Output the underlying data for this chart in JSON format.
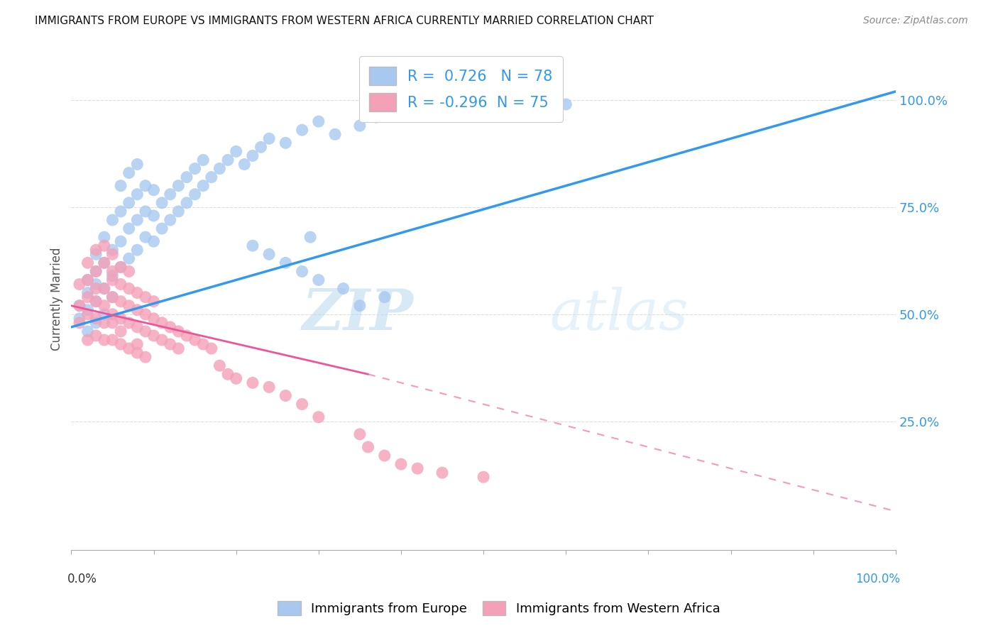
{
  "title": "IMMIGRANTS FROM EUROPE VS IMMIGRANTS FROM WESTERN AFRICA CURRENTLY MARRIED CORRELATION CHART",
  "source": "Source: ZipAtlas.com",
  "ylabel": "Currently Married",
  "ylabel_right_ticks": [
    "100.0%",
    "75.0%",
    "50.0%",
    "25.0%"
  ],
  "ylabel_right_vals": [
    1.0,
    0.75,
    0.5,
    0.25
  ],
  "blue_R": 0.726,
  "blue_N": 78,
  "pink_R": -0.296,
  "pink_N": 75,
  "blue_color": "#A8C8F0",
  "pink_color": "#F4A0B8",
  "blue_line_color": "#3399EE",
  "pink_line_color": "#EE5599",
  "legend_label_blue": "Immigrants from Europe",
  "legend_label_pink": "Immigrants from Western Africa",
  "watermark_zip": "ZIP",
  "watermark_atlas": "atlas",
  "xlim": [
    0.0,
    1.0
  ],
  "ylim": [
    -0.05,
    1.12
  ],
  "blue_scatter_x": [
    0.01,
    0.01,
    0.02,
    0.02,
    0.02,
    0.02,
    0.03,
    0.03,
    0.03,
    0.03,
    0.03,
    0.04,
    0.04,
    0.04,
    0.04,
    0.05,
    0.05,
    0.05,
    0.05,
    0.06,
    0.06,
    0.06,
    0.06,
    0.07,
    0.07,
    0.07,
    0.07,
    0.08,
    0.08,
    0.08,
    0.08,
    0.09,
    0.09,
    0.09,
    0.1,
    0.1,
    0.1,
    0.11,
    0.11,
    0.12,
    0.12,
    0.13,
    0.13,
    0.14,
    0.14,
    0.15,
    0.15,
    0.16,
    0.16,
    0.17,
    0.18,
    0.19,
    0.2,
    0.21,
    0.22,
    0.23,
    0.24,
    0.26,
    0.28,
    0.3,
    0.32,
    0.35,
    0.37,
    0.4,
    0.43,
    0.46,
    0.5,
    0.55,
    0.6,
    0.28,
    0.3,
    0.33,
    0.35,
    0.38,
    0.22,
    0.24,
    0.26,
    0.29
  ],
  "blue_scatter_y": [
    0.52,
    0.49,
    0.55,
    0.51,
    0.58,
    0.46,
    0.53,
    0.6,
    0.57,
    0.48,
    0.64,
    0.56,
    0.62,
    0.68,
    0.5,
    0.59,
    0.65,
    0.72,
    0.54,
    0.61,
    0.67,
    0.74,
    0.8,
    0.63,
    0.7,
    0.76,
    0.83,
    0.65,
    0.72,
    0.78,
    0.85,
    0.68,
    0.74,
    0.8,
    0.67,
    0.73,
    0.79,
    0.7,
    0.76,
    0.72,
    0.78,
    0.74,
    0.8,
    0.76,
    0.82,
    0.78,
    0.84,
    0.8,
    0.86,
    0.82,
    0.84,
    0.86,
    0.88,
    0.85,
    0.87,
    0.89,
    0.91,
    0.9,
    0.93,
    0.95,
    0.92,
    0.94,
    0.96,
    0.98,
    1.0,
    1.02,
    1.03,
    1.04,
    0.99,
    0.6,
    0.58,
    0.56,
    0.52,
    0.54,
    0.66,
    0.64,
    0.62,
    0.68
  ],
  "pink_scatter_x": [
    0.01,
    0.01,
    0.01,
    0.02,
    0.02,
    0.02,
    0.02,
    0.02,
    0.03,
    0.03,
    0.03,
    0.03,
    0.03,
    0.03,
    0.04,
    0.04,
    0.04,
    0.04,
    0.04,
    0.04,
    0.05,
    0.05,
    0.05,
    0.05,
    0.05,
    0.05,
    0.05,
    0.06,
    0.06,
    0.06,
    0.06,
    0.06,
    0.06,
    0.07,
    0.07,
    0.07,
    0.07,
    0.07,
    0.08,
    0.08,
    0.08,
    0.08,
    0.08,
    0.09,
    0.09,
    0.09,
    0.09,
    0.1,
    0.1,
    0.1,
    0.11,
    0.11,
    0.12,
    0.12,
    0.13,
    0.13,
    0.14,
    0.15,
    0.16,
    0.17,
    0.18,
    0.19,
    0.2,
    0.22,
    0.24,
    0.26,
    0.28,
    0.3,
    0.35,
    0.36,
    0.38,
    0.4,
    0.42,
    0.45,
    0.5
  ],
  "pink_scatter_y": [
    0.52,
    0.57,
    0.48,
    0.54,
    0.5,
    0.58,
    0.44,
    0.62,
    0.53,
    0.49,
    0.56,
    0.45,
    0.6,
    0.65,
    0.52,
    0.48,
    0.56,
    0.44,
    0.62,
    0.66,
    0.54,
    0.5,
    0.58,
    0.44,
    0.48,
    0.6,
    0.64,
    0.53,
    0.49,
    0.57,
    0.43,
    0.61,
    0.46,
    0.52,
    0.48,
    0.56,
    0.42,
    0.6,
    0.51,
    0.47,
    0.55,
    0.41,
    0.43,
    0.5,
    0.46,
    0.54,
    0.4,
    0.49,
    0.45,
    0.53,
    0.48,
    0.44,
    0.47,
    0.43,
    0.46,
    0.42,
    0.45,
    0.44,
    0.43,
    0.42,
    0.38,
    0.36,
    0.35,
    0.34,
    0.33,
    0.31,
    0.29,
    0.26,
    0.22,
    0.19,
    0.17,
    0.15,
    0.14,
    0.13,
    0.12
  ],
  "blue_line_x0": 0.0,
  "blue_line_y0": 0.47,
  "blue_line_x1": 1.0,
  "blue_line_y1": 1.02,
  "pink_line_x0": 0.0,
  "pink_line_y0": 0.52,
  "pink_line_x1_solid": 0.36,
  "pink_line_y1_solid": 0.36,
  "pink_line_x1_dash": 1.0,
  "pink_line_y1_dash": 0.04
}
